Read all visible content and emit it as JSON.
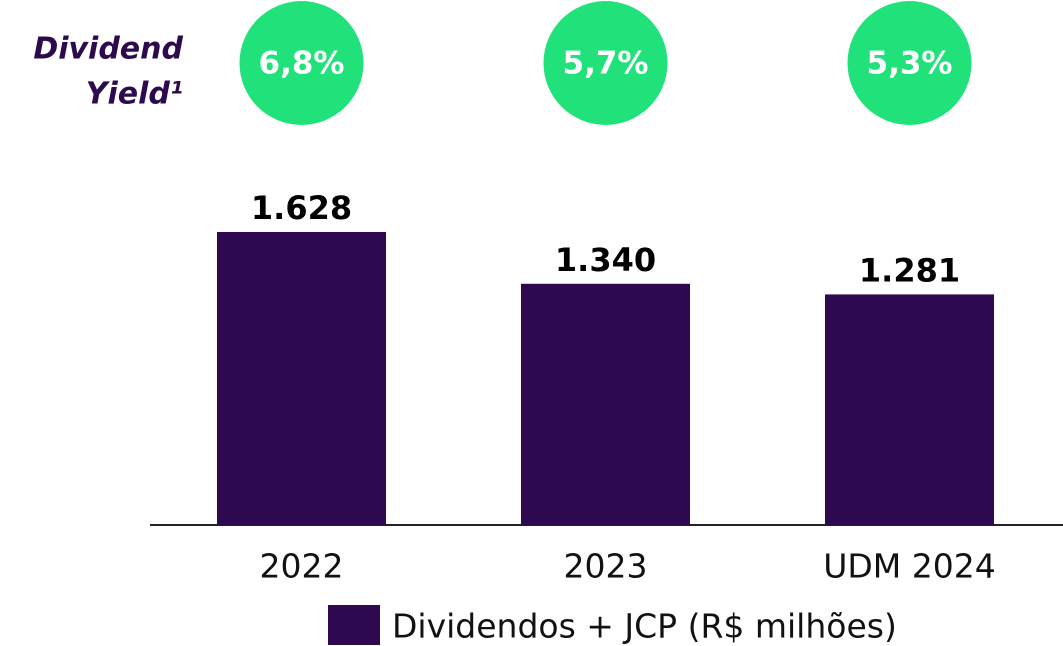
{
  "chart_data": {
    "type": "bar",
    "categories": [
      "2022",
      "2023",
      "UDM 2024"
    ],
    "series": [
      {
        "name": "Dividendos + JCP (R$ milhões)",
        "color": "#2e0850",
        "values": [
          1628,
          1340,
          1281
        ],
        "value_labels": [
          "1.628",
          "1.340",
          "1.281"
        ]
      }
    ],
    "yield_title": [
      "Dividend",
      "Yield¹"
    ],
    "yield_color": "#21e27a",
    "yield_values": [
      6.8,
      5.7,
      5.3
    ],
    "yield_labels": [
      "6,8%",
      "5,7%",
      "5,3%"
    ]
  }
}
